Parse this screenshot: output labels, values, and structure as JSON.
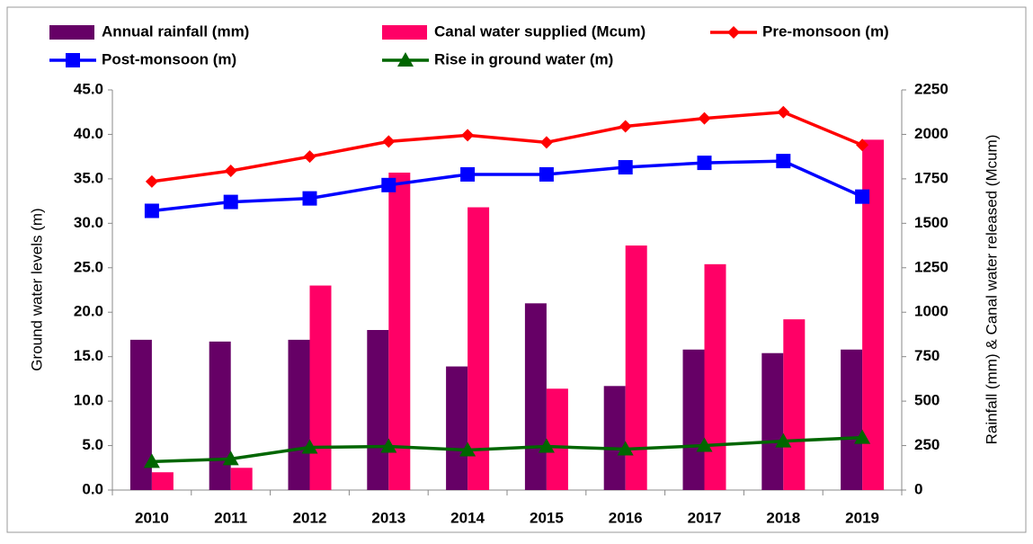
{
  "chart_data": {
    "type": "bar",
    "categories": [
      "2010",
      "2011",
      "2012",
      "2013",
      "2014",
      "2015",
      "2016",
      "2017",
      "2018",
      "2019"
    ],
    "series": [
      {
        "name": "Annual rainfall (mm)",
        "type": "bar",
        "axis": "y2",
        "color": "#660066",
        "values": [
          845,
          835,
          845,
          900,
          695,
          1050,
          585,
          790,
          770,
          790
        ]
      },
      {
        "name": "Canal water supplied (Mcum)",
        "type": "bar",
        "axis": "y2",
        "color": "#ff0066",
        "values": [
          100,
          125,
          1150,
          1785,
          1590,
          570,
          1375,
          1270,
          960,
          1970
        ]
      },
      {
        "name": "Pre-monsoon (m)",
        "type": "line",
        "marker": "diamond",
        "color": "#ff0000",
        "values": [
          34.7,
          35.9,
          37.5,
          39.2,
          39.9,
          39.1,
          40.9,
          41.8,
          42.5,
          38.8
        ]
      },
      {
        "name": "Post-monsoon (m)",
        "type": "line",
        "marker": "square",
        "color": "#0000ff",
        "values": [
          31.4,
          32.4,
          32.8,
          34.3,
          35.5,
          35.5,
          36.3,
          36.8,
          37.0,
          33.0
        ]
      },
      {
        "name": "Rise in ground water (m)",
        "type": "line",
        "marker": "triangle",
        "color": "#006600",
        "values": [
          3.2,
          3.5,
          4.8,
          4.9,
          4.5,
          4.9,
          4.6,
          5.0,
          5.5,
          5.9
        ]
      }
    ],
    "ylabel": "Ground water levels (m)",
    "y2label": "Rainfall (mm) & Canal water released (Mcum)",
    "ylim": [
      0,
      45
    ],
    "yticks": [
      {
        "value": 0,
        "label": "0.0"
      },
      {
        "value": 5,
        "label": "5.0"
      },
      {
        "value": 10,
        "label": "10.0"
      },
      {
        "value": 15,
        "label": "15.0"
      },
      {
        "value": 20,
        "label": "20.0"
      },
      {
        "value": 25,
        "label": "25.0"
      },
      {
        "value": 30,
        "label": "30.0"
      },
      {
        "value": 35,
        "label": "35.0"
      },
      {
        "value": 40,
        "label": "40.0"
      },
      {
        "value": 45,
        "label": "45.0"
      }
    ],
    "y2lim": [
      0,
      2250
    ],
    "y2ticks": [
      0,
      250,
      500,
      750,
      1000,
      1250,
      1500,
      1750,
      2000,
      2250
    ],
    "grid": false,
    "legend": "top"
  }
}
